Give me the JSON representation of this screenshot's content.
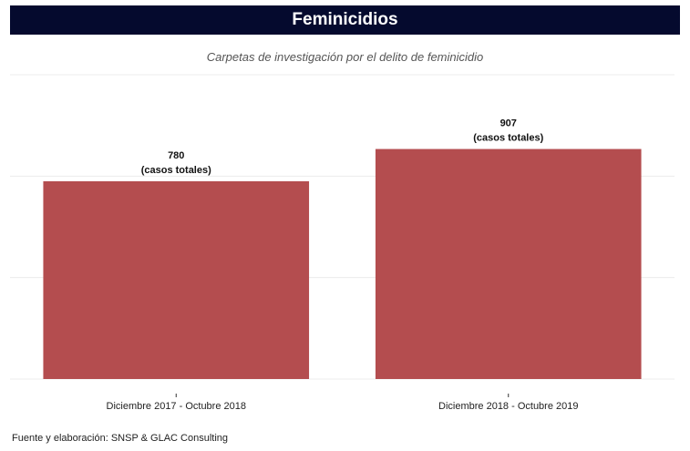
{
  "header": {
    "title": "Feminicidios",
    "subtitle": "Carpetas de investigación por el delito de feminicidio"
  },
  "footer": {
    "source": "Fuente y elaboración: SNSP & GLAC Consulting"
  },
  "colors": {
    "title_bg": "#050a2e",
    "bar": "#b44d4f",
    "grid": "#ececec"
  },
  "chart_data": {
    "type": "bar",
    "categories": [
      "Diciembre 2017 - Octubre 2018",
      "Diciembre 2018 - Octubre 2019"
    ],
    "values": [
      780,
      907
    ],
    "data_labels": [
      [
        "780",
        "(casos totales)"
      ],
      [
        "907",
        "(casos totales)"
      ]
    ],
    "title": "Feminicidios",
    "subtitle": "Carpetas de investigación por el delito de feminicidio",
    "xlabel": "",
    "ylabel": "",
    "ylim": [
      0,
      1200
    ],
    "grid": true,
    "legend": "none"
  }
}
